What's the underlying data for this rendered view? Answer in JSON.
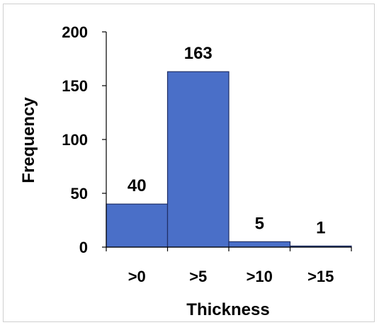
{
  "chart_data": {
    "type": "bar",
    "categories": [
      ">0",
      ">5",
      ">10",
      ">15"
    ],
    "values": [
      40,
      163,
      5,
      1
    ],
    "data_labels": [
      "40",
      "163",
      "5",
      "1"
    ],
    "xlabel": "Thickness",
    "ylabel": "Frequency",
    "ylim": [
      0,
      200
    ],
    "yticks": [
      0,
      50,
      100,
      150,
      200
    ],
    "ytick_labels": [
      "0",
      "50",
      "100",
      "150",
      "200"
    ],
    "grid": false,
    "legend": "none",
    "bar_color": "#4a6fc8",
    "bar_edge_color": "#1f2f66"
  }
}
